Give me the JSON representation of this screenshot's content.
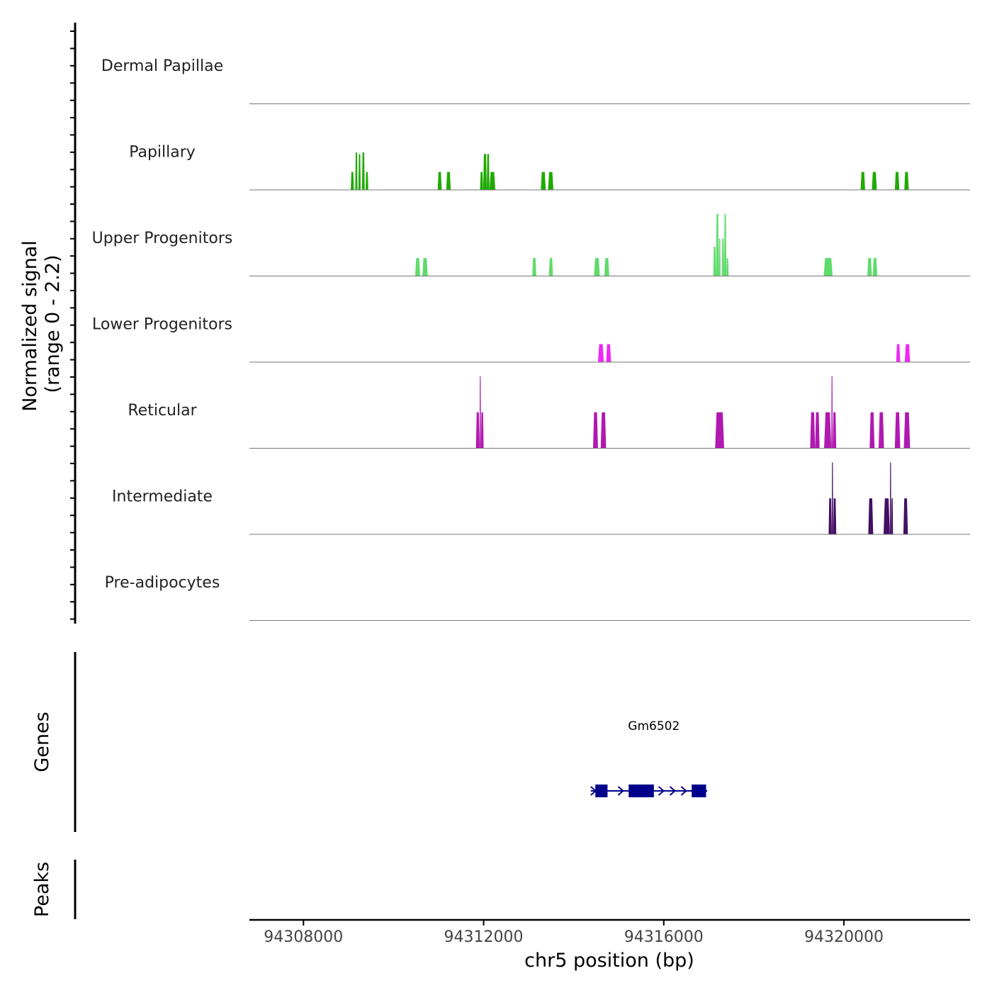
{
  "chart_data": {
    "type": "coverage-track",
    "region": {
      "chrom": "chr5",
      "start": 94306800,
      "end": 94322800
    },
    "y_axis_label": "Normalized signal",
    "y_axis_range_label": "(range 0 - 2.2)",
    "ylim": [
      0,
      2.2
    ],
    "x_axis_label": "chr5 position (bp)",
    "x_ticks": [
      94308000,
      94312000,
      94316000,
      94320000
    ],
    "x_tick_labels": [
      "94308000",
      "94312000",
      "94316000",
      "94320000"
    ],
    "tracks": [
      {
        "name": "Dermal Papillae",
        "color": "#1a6e1a",
        "peaks": []
      },
      {
        "name": "Papillary",
        "color": "#1faa00",
        "peaks": [
          {
            "start": 94309050,
            "end": 94309120,
            "value": 0.55
          },
          {
            "start": 94309150,
            "end": 94309200,
            "value": 1.15
          },
          {
            "start": 94309220,
            "end": 94309270,
            "value": 1.1
          },
          {
            "start": 94309300,
            "end": 94309360,
            "value": 1.15
          },
          {
            "start": 94309380,
            "end": 94309440,
            "value": 0.55
          },
          {
            "start": 94310980,
            "end": 94311070,
            "value": 0.55
          },
          {
            "start": 94311170,
            "end": 94311270,
            "value": 0.55
          },
          {
            "start": 94311920,
            "end": 94311990,
            "value": 0.55
          },
          {
            "start": 94311990,
            "end": 94312070,
            "value": 1.1
          },
          {
            "start": 94312070,
            "end": 94312130,
            "value": 1.1
          },
          {
            "start": 94312130,
            "end": 94312260,
            "value": 0.55
          },
          {
            "start": 94313270,
            "end": 94313380,
            "value": 0.55
          },
          {
            "start": 94313430,
            "end": 94313550,
            "value": 0.55
          },
          {
            "start": 94320370,
            "end": 94320470,
            "value": 0.55
          },
          {
            "start": 94320620,
            "end": 94320730,
            "value": 0.55
          },
          {
            "start": 94321130,
            "end": 94321230,
            "value": 0.55
          },
          {
            "start": 94321340,
            "end": 94321440,
            "value": 0.55
          }
        ]
      },
      {
        "name": "Upper Progenitors",
        "color": "#5edb6a",
        "peaks": [
          {
            "start": 94310480,
            "end": 94310590,
            "value": 0.55
          },
          {
            "start": 94310640,
            "end": 94310760,
            "value": 0.55
          },
          {
            "start": 94313080,
            "end": 94313170,
            "value": 0.55
          },
          {
            "start": 94313450,
            "end": 94313540,
            "value": 0.55
          },
          {
            "start": 94314450,
            "end": 94314580,
            "value": 0.55
          },
          {
            "start": 94314680,
            "end": 94314790,
            "value": 0.55
          },
          {
            "start": 94317100,
            "end": 94317160,
            "value": 0.9
          },
          {
            "start": 94317160,
            "end": 94317220,
            "value": 1.9
          },
          {
            "start": 94317220,
            "end": 94317260,
            "value": 1.15
          },
          {
            "start": 94317290,
            "end": 94317340,
            "value": 1.15
          },
          {
            "start": 94317340,
            "end": 94317390,
            "value": 1.9
          },
          {
            "start": 94317390,
            "end": 94317440,
            "value": 0.55
          },
          {
            "start": 94319550,
            "end": 94319750,
            "value": 0.55
          },
          {
            "start": 94320520,
            "end": 94320620,
            "value": 0.55
          },
          {
            "start": 94320640,
            "end": 94320740,
            "value": 0.55
          }
        ]
      },
      {
        "name": "Lower Progenitors",
        "color": "#f028f5",
        "peaks": [
          {
            "start": 94314540,
            "end": 94314670,
            "value": 0.55
          },
          {
            "start": 94314720,
            "end": 94314830,
            "value": 0.55
          },
          {
            "start": 94321160,
            "end": 94321250,
            "value": 0.55
          },
          {
            "start": 94321350,
            "end": 94321470,
            "value": 0.55
          }
        ]
      },
      {
        "name": "Reticular",
        "color": "#b019b0",
        "peaks": [
          {
            "start": 94311830,
            "end": 94311910,
            "value": 1.1
          },
          {
            "start": 94311910,
            "end": 94311940,
            "value": 2.2
          },
          {
            "start": 94311940,
            "end": 94312000,
            "value": 1.1
          },
          {
            "start": 94314430,
            "end": 94314540,
            "value": 1.1
          },
          {
            "start": 94314600,
            "end": 94314720,
            "value": 1.1
          },
          {
            "start": 94317140,
            "end": 94317340,
            "value": 1.1
          },
          {
            "start": 94319250,
            "end": 94319360,
            "value": 1.1
          },
          {
            "start": 94319360,
            "end": 94319460,
            "value": 1.1
          },
          {
            "start": 94319560,
            "end": 94319720,
            "value": 1.1
          },
          {
            "start": 94319720,
            "end": 94319750,
            "value": 2.2
          },
          {
            "start": 94319750,
            "end": 94319830,
            "value": 1.1
          },
          {
            "start": 94320570,
            "end": 94320680,
            "value": 1.1
          },
          {
            "start": 94320770,
            "end": 94320890,
            "value": 1.1
          },
          {
            "start": 94321130,
            "end": 94321250,
            "value": 1.1
          },
          {
            "start": 94321330,
            "end": 94321470,
            "value": 1.1
          }
        ]
      },
      {
        "name": "Intermediate",
        "color": "#430f63",
        "peaks": [
          {
            "start": 94319660,
            "end": 94319730,
            "value": 1.1
          },
          {
            "start": 94319730,
            "end": 94319760,
            "value": 2.2
          },
          {
            "start": 94319760,
            "end": 94319830,
            "value": 1.1
          },
          {
            "start": 94320540,
            "end": 94320650,
            "value": 1.1
          },
          {
            "start": 94320880,
            "end": 94321020,
            "value": 1.1
          },
          {
            "start": 94321020,
            "end": 94321050,
            "value": 2.2
          },
          {
            "start": 94321050,
            "end": 94321090,
            "value": 1.1
          },
          {
            "start": 94321320,
            "end": 94321420,
            "value": 1.1
          }
        ]
      },
      {
        "name": "Pre-adipocytes",
        "color": "#2a0a3e",
        "peaks": []
      }
    ],
    "gene_panel_label": "Genes",
    "genes": [
      {
        "name": "Gm6502",
        "strand": "+",
        "color": "#00008b",
        "start": 94314380,
        "end": 94316960,
        "exons": [
          [
            94314480,
            94314750
          ],
          [
            94315220,
            94315780
          ],
          [
            94316620,
            94316940
          ]
        ]
      }
    ],
    "peaks_panel_label": "Peaks",
    "peak_regions": []
  }
}
